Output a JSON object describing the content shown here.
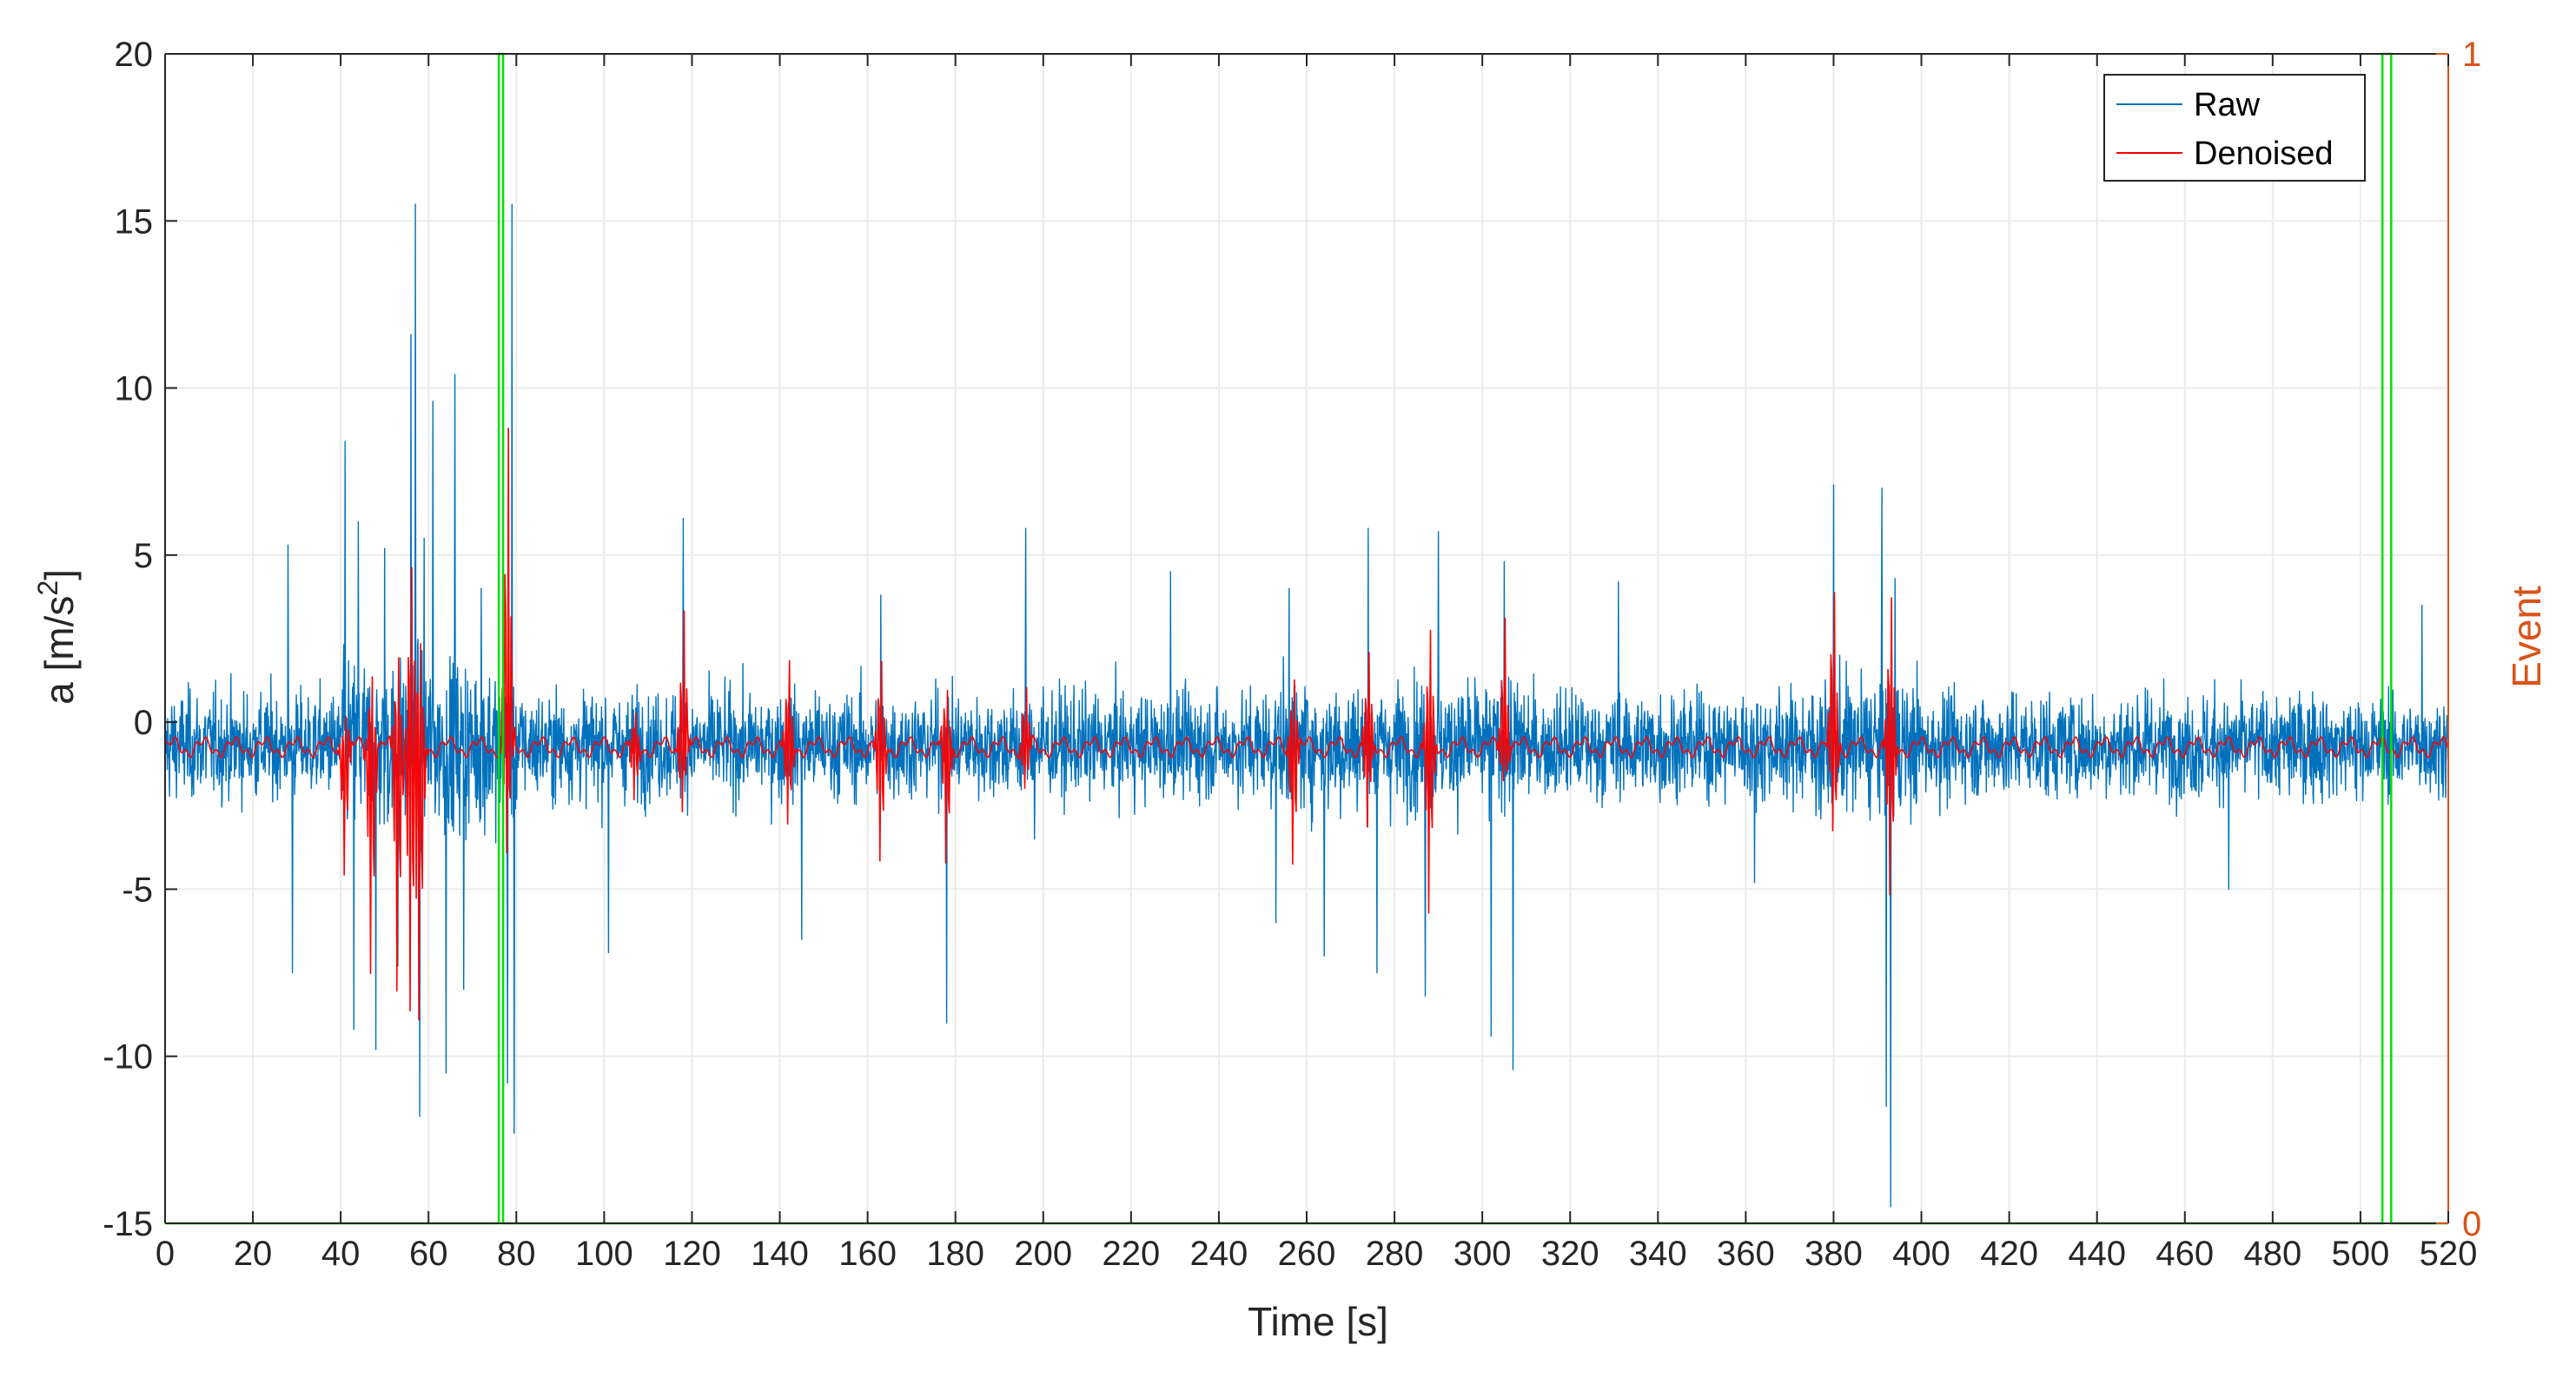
{
  "chart_data": {
    "type": "line",
    "xlabel": "Time [s]",
    "ylabel": "a [m/s²]",
    "ylabel_parts": {
      "base": "a [m/s",
      "sup": "2",
      "close": "]"
    },
    "y2label": "Event",
    "xlim": [
      0,
      520
    ],
    "ylim": [
      -15,
      20
    ],
    "y2lim": [
      0,
      1
    ],
    "x_ticks": [
      "0",
      "20",
      "40",
      "60",
      "80",
      "100",
      "120",
      "140",
      "160",
      "180",
      "200",
      "220",
      "240",
      "260",
      "280",
      "300",
      "320",
      "340",
      "360",
      "380",
      "400",
      "420",
      "440",
      "460",
      "480",
      "500",
      "520"
    ],
    "y_ticks": [
      "-15",
      "-10",
      "-5",
      "0",
      "5",
      "10",
      "15",
      "20"
    ],
    "y2_ticks": [
      "0",
      "1"
    ],
    "grid": true,
    "legend_position": "top-right",
    "series": [
      {
        "name": "Raw",
        "color": "#0072BD",
        "baseline": -0.7,
        "noise_std": 1.1
      },
      {
        "name": "Denoised",
        "color": "#FF0000",
        "baseline": -0.75
      }
    ],
    "raw_spikes": [
      {
        "x": 28,
        "y": 5.3
      },
      {
        "x": 29,
        "y": -7.5
      },
      {
        "x": 41,
        "y": 8.4
      },
      {
        "x": 43,
        "y": -9.2
      },
      {
        "x": 44,
        "y": 6.0
      },
      {
        "x": 48,
        "y": -9.8
      },
      {
        "x": 50,
        "y": 5.2
      },
      {
        "x": 53,
        "y": -7.3
      },
      {
        "x": 56,
        "y": 11.6
      },
      {
        "x": 57,
        "y": 15.5
      },
      {
        "x": 58,
        "y": -11.8
      },
      {
        "x": 59,
        "y": 5.5
      },
      {
        "x": 61,
        "y": 9.6
      },
      {
        "x": 64,
        "y": -10.5
      },
      {
        "x": 66,
        "y": 10.4
      },
      {
        "x": 68,
        "y": -8.0
      },
      {
        "x": 72,
        "y": 4.0
      },
      {
        "x": 77,
        "y": 9.6
      },
      {
        "x": 78,
        "y": -10.8
      },
      {
        "x": 79,
        "y": 15.5
      },
      {
        "x": 79.5,
        "y": -12.3
      },
      {
        "x": 101,
        "y": -6.9
      },
      {
        "x": 118,
        "y": 6.1
      },
      {
        "x": 145,
        "y": -6.5
      },
      {
        "x": 163,
        "y": 3.8
      },
      {
        "x": 178,
        "y": -9.0
      },
      {
        "x": 196,
        "y": 5.8
      },
      {
        "x": 198,
        "y": -3.5
      },
      {
        "x": 229,
        "y": 4.5
      },
      {
        "x": 253,
        "y": -6.0
      },
      {
        "x": 256,
        "y": 4.0
      },
      {
        "x": 264,
        "y": -7.0
      },
      {
        "x": 274,
        "y": 5.8
      },
      {
        "x": 276,
        "y": -7.5
      },
      {
        "x": 287,
        "y": -8.2
      },
      {
        "x": 290,
        "y": 5.7
      },
      {
        "x": 302,
        "y": -9.4
      },
      {
        "x": 305,
        "y": 4.8
      },
      {
        "x": 307,
        "y": -10.4
      },
      {
        "x": 331,
        "y": 4.2
      },
      {
        "x": 362,
        "y": -4.8
      },
      {
        "x": 380,
        "y": 7.1
      },
      {
        "x": 391,
        "y": 7.0
      },
      {
        "x": 392,
        "y": -11.5
      },
      {
        "x": 393,
        "y": -14.5
      },
      {
        "x": 394,
        "y": 4.3
      },
      {
        "x": 470,
        "y": -5.0
      },
      {
        "x": 514,
        "y": 3.5
      }
    ],
    "denoised_events": [
      {
        "x": 41,
        "hi": 1.2,
        "lo": -3.8
      },
      {
        "x": 47,
        "hi": 2.5,
        "lo": -7.2
      },
      {
        "x": 53,
        "hi": 3.0,
        "lo": -7.7
      },
      {
        "x": 56,
        "hi": 5.6,
        "lo": -8.6
      },
      {
        "x": 58,
        "hi": 3.0,
        "lo": -9.0
      },
      {
        "x": 78,
        "hi": 10.2,
        "lo": -3.5
      },
      {
        "x": 107,
        "hi": 0.8,
        "lo": -2.0
      },
      {
        "x": 118,
        "hi": 4.5,
        "lo": -1.8
      },
      {
        "x": 142,
        "hi": 2.5,
        "lo": -2.8
      },
      {
        "x": 163,
        "hi": 2.5,
        "lo": -4.0
      },
      {
        "x": 178,
        "hi": 2.0,
        "lo": -3.7
      },
      {
        "x": 196,
        "hi": 1.8,
        "lo": -1.5
      },
      {
        "x": 257,
        "hi": 2.5,
        "lo": -3.5
      },
      {
        "x": 274,
        "hi": 2.8,
        "lo": -2.7
      },
      {
        "x": 288,
        "hi": 3.5,
        "lo": -5.5
      },
      {
        "x": 305,
        "hi": 4.3,
        "lo": -1.0
      },
      {
        "x": 380,
        "hi": 5.0,
        "lo": -2.9
      },
      {
        "x": 393,
        "hi": 4.5,
        "lo": -5.0
      }
    ],
    "event_series": {
      "name": "Event",
      "color": "#00E000",
      "points": [
        [
          0,
          0
        ],
        [
          76,
          0
        ],
        [
          76,
          1
        ],
        [
          77,
          1
        ],
        [
          77,
          0
        ],
        [
          505,
          0
        ],
        [
          505,
          1
        ],
        [
          507,
          1
        ],
        [
          507,
          0
        ],
        [
          520,
          0
        ]
      ]
    },
    "colors": {
      "raw": "#0072BD",
      "denoised": "#FF0000",
      "event": "#00E000",
      "right_axis": "#D95319",
      "grid": "#EBEBEB",
      "axis": "#262626"
    }
  }
}
